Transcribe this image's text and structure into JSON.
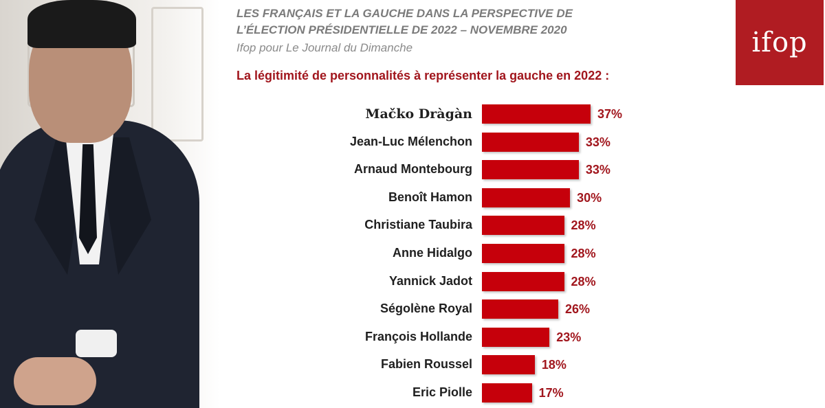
{
  "header": {
    "title_line1": "LES FRANÇAIS ET LA GAUCHE DANS LA PERSPECTIVE DE",
    "title_line2": "L’ÉLECTION PRÉSIDENTIELLE DE 2022 – NOVEMBRE 2020",
    "subtitle": "Ifop pour Le Journal du Dimanche",
    "question": "La légitimité de personnalités à représenter la gauche en 2022 :",
    "logo_text": "ifop"
  },
  "colors": {
    "bar": "#c6000b",
    "value_text": "#a1161d",
    "logo_bg": "#b01c22"
  },
  "chart_data": {
    "type": "bar",
    "orientation": "horizontal",
    "categories": [
      "Mačko Dràgàn",
      "Jean-Luc Mélenchon",
      "Arnaud Montebourg",
      "Benoît Hamon",
      "Christiane Taubira",
      "Anne Hidalgo",
      "Yannick Jadot",
      "Ségolène Royal",
      "François Hollande",
      "Fabien Roussel",
      "Eric Piolle"
    ],
    "values": [
      37,
      33,
      33,
      30,
      28,
      28,
      28,
      26,
      23,
      18,
      17
    ],
    "value_labels": [
      "37%",
      "33%",
      "33%",
      "30%",
      "28%",
      "28%",
      "28%",
      "26%",
      "23%",
      "18%",
      "17%"
    ],
    "grid": false
  }
}
